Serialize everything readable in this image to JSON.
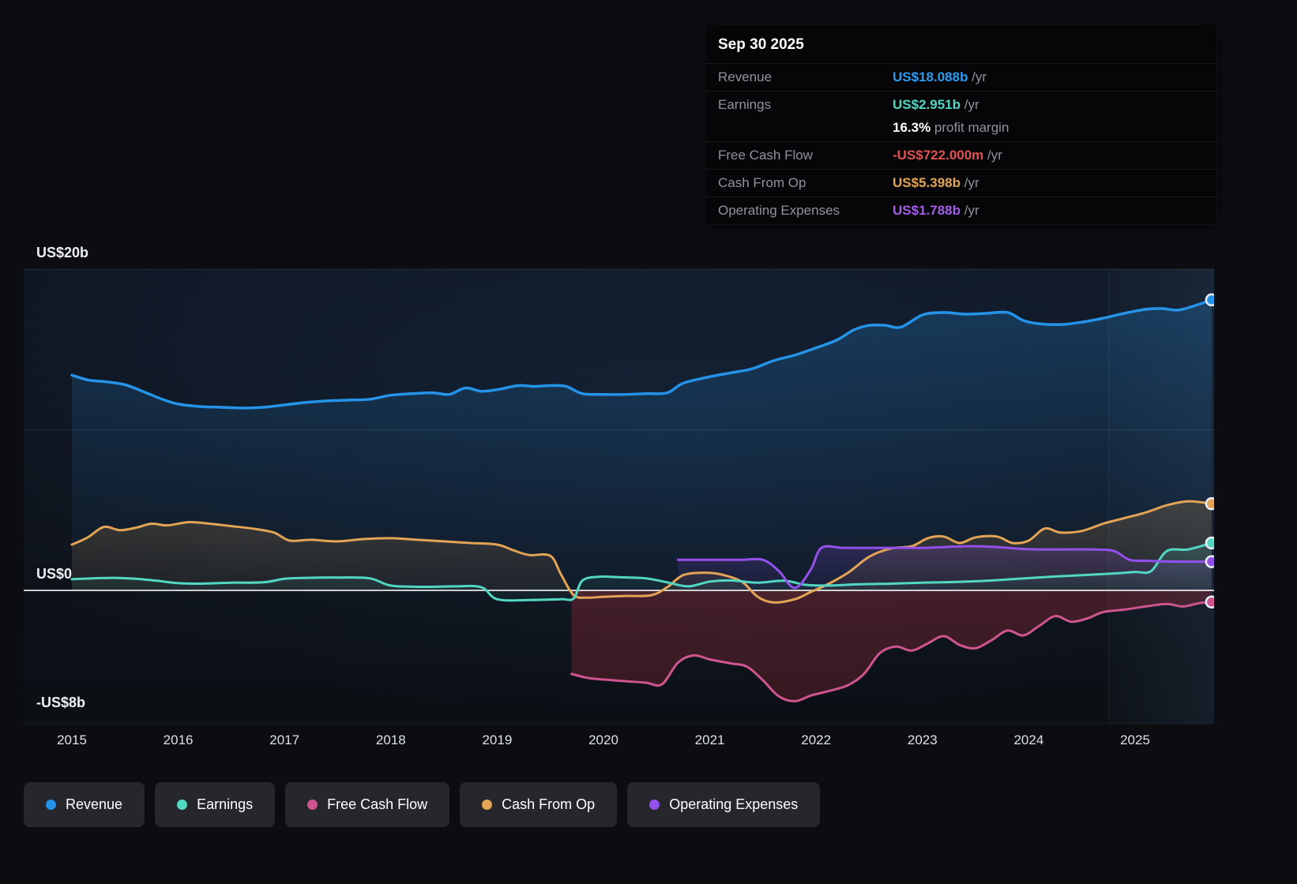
{
  "tooltip": {
    "date": "Sep 30 2025",
    "rows": [
      {
        "label": "Revenue",
        "value": "US$18.088b",
        "suffix": " /yr",
        "color": "#2e9bf0",
        "continuation": false
      },
      {
        "label": "Earnings",
        "value": "US$2.951b",
        "suffix": " /yr",
        "color": "#52d7c3",
        "continuation": false
      },
      {
        "label": "",
        "value": "16.3%",
        "suffix": " profit margin",
        "color": "#ffffff",
        "continuation": true
      },
      {
        "label": "Free Cash Flow",
        "value": "-US$722.000m",
        "suffix": " /yr",
        "color": "#e05252",
        "continuation": false
      },
      {
        "label": "Cash From Op",
        "value": "US$5.398b",
        "suffix": " /yr",
        "color": "#e3a455",
        "continuation": false
      },
      {
        "label": "Operating Expenses",
        "value": "US$1.788b",
        "suffix": " /yr",
        "color": "#a35ce8",
        "continuation": false
      }
    ]
  },
  "legend": [
    {
      "label": "Revenue",
      "color": "#2493e8"
    },
    {
      "label": "Earnings",
      "color": "#52d7c3"
    },
    {
      "label": "Free Cash Flow",
      "color": "#cf5590"
    },
    {
      "label": "Cash From Op",
      "color": "#e3a455"
    },
    {
      "label": "Operating Expenses",
      "color": "#9450eb"
    }
  ],
  "chart_data": {
    "type": "line",
    "title": "",
    "xlabel": "",
    "ylabel": "",
    "unit": "US$ billions per year",
    "x_range": [
      2015,
      2025.75
    ],
    "y_range": [
      -8,
      20
    ],
    "x_ticks": [
      2015,
      2016,
      2017,
      2018,
      2019,
      2020,
      2021,
      2022,
      2023,
      2024,
      2025
    ],
    "y_gridlines": [
      {
        "value": 20,
        "label": "US$20b",
        "line": true
      },
      {
        "value": 10,
        "label": "",
        "line": true
      },
      {
        "value": 0,
        "label": "US$0",
        "line": true
      },
      {
        "value": -8,
        "label": "-US$8b",
        "line": false
      }
    ],
    "highlight_band_start": 2024.75,
    "series": [
      {
        "name": "Revenue",
        "color": "#2493e8",
        "stroke_width": 3.5,
        "fill_top": "rgba(36,130,200,0.30)",
        "fill_bottom": "rgba(25,60,100,0.10)",
        "points": [
          [
            2015,
            13.4
          ],
          [
            2015.15,
            13.1
          ],
          [
            2015.3,
            13.0
          ],
          [
            2015.5,
            12.8
          ],
          [
            2015.7,
            12.3
          ],
          [
            2015.85,
            11.9
          ],
          [
            2016,
            11.6
          ],
          [
            2016.2,
            11.45
          ],
          [
            2016.4,
            11.4
          ],
          [
            2016.6,
            11.35
          ],
          [
            2016.8,
            11.4
          ],
          [
            2017,
            11.55
          ],
          [
            2017.2,
            11.7
          ],
          [
            2017.4,
            11.8
          ],
          [
            2017.6,
            11.85
          ],
          [
            2017.8,
            11.9
          ],
          [
            2018,
            12.15
          ],
          [
            2018.2,
            12.25
          ],
          [
            2018.4,
            12.3
          ],
          [
            2018.55,
            12.2
          ],
          [
            2018.7,
            12.6
          ],
          [
            2018.85,
            12.4
          ],
          [
            2019,
            12.5
          ],
          [
            2019.2,
            12.75
          ],
          [
            2019.35,
            12.7
          ],
          [
            2019.5,
            12.75
          ],
          [
            2019.65,
            12.7
          ],
          [
            2019.8,
            12.25
          ],
          [
            2020,
            12.2
          ],
          [
            2020.2,
            12.2
          ],
          [
            2020.4,
            12.25
          ],
          [
            2020.6,
            12.3
          ],
          [
            2020.75,
            12.9
          ],
          [
            2021,
            13.3
          ],
          [
            2021.2,
            13.55
          ],
          [
            2021.4,
            13.8
          ],
          [
            2021.6,
            14.3
          ],
          [
            2021.8,
            14.65
          ],
          [
            2022,
            15.1
          ],
          [
            2022.2,
            15.6
          ],
          [
            2022.35,
            16.2
          ],
          [
            2022.5,
            16.5
          ],
          [
            2022.65,
            16.5
          ],
          [
            2022.8,
            16.4
          ],
          [
            2023,
            17.15
          ],
          [
            2023.2,
            17.3
          ],
          [
            2023.4,
            17.2
          ],
          [
            2023.6,
            17.25
          ],
          [
            2023.8,
            17.3
          ],
          [
            2023.95,
            16.8
          ],
          [
            2024.1,
            16.6
          ],
          [
            2024.3,
            16.55
          ],
          [
            2024.5,
            16.7
          ],
          [
            2024.7,
            16.95
          ],
          [
            2024.9,
            17.25
          ],
          [
            2025.1,
            17.5
          ],
          [
            2025.25,
            17.55
          ],
          [
            2025.4,
            17.45
          ],
          [
            2025.55,
            17.7
          ],
          [
            2025.72,
            18.088
          ]
        ]
      },
      {
        "name": "Cash From Op",
        "color": "#e3a455",
        "stroke_width": 3,
        "fill_top": "rgba(227,164,85,0.20)",
        "fill_bottom": "rgba(227,164,85,0.05)",
        "points": [
          [
            2015,
            2.85
          ],
          [
            2015.15,
            3.3
          ],
          [
            2015.3,
            3.95
          ],
          [
            2015.45,
            3.75
          ],
          [
            2015.6,
            3.9
          ],
          [
            2015.75,
            4.15
          ],
          [
            2015.9,
            4.05
          ],
          [
            2016.1,
            4.25
          ],
          [
            2016.3,
            4.15
          ],
          [
            2016.5,
            4.0
          ],
          [
            2016.7,
            3.85
          ],
          [
            2016.9,
            3.6
          ],
          [
            2017.05,
            3.1
          ],
          [
            2017.25,
            3.15
          ],
          [
            2017.5,
            3.05
          ],
          [
            2017.75,
            3.2
          ],
          [
            2018,
            3.25
          ],
          [
            2018.25,
            3.15
          ],
          [
            2018.5,
            3.05
          ],
          [
            2018.75,
            2.95
          ],
          [
            2019,
            2.85
          ],
          [
            2019.15,
            2.5
          ],
          [
            2019.3,
            2.2
          ],
          [
            2019.5,
            2.15
          ],
          [
            2019.6,
            1.0
          ],
          [
            2019.72,
            -0.3
          ],
          [
            2019.85,
            -0.45
          ],
          [
            2020,
            -0.4
          ],
          [
            2020.2,
            -0.35
          ],
          [
            2020.45,
            -0.3
          ],
          [
            2020.6,
            0.2
          ],
          [
            2020.75,
            0.95
          ],
          [
            2020.95,
            1.1
          ],
          [
            2021.1,
            1.0
          ],
          [
            2021.3,
            0.55
          ],
          [
            2021.45,
            -0.4
          ],
          [
            2021.6,
            -0.75
          ],
          [
            2021.8,
            -0.55
          ],
          [
            2021.95,
            -0.1
          ],
          [
            2022.1,
            0.35
          ],
          [
            2022.3,
            1.1
          ],
          [
            2022.5,
            2.1
          ],
          [
            2022.7,
            2.6
          ],
          [
            2022.9,
            2.75
          ],
          [
            2023.05,
            3.25
          ],
          [
            2023.2,
            3.35
          ],
          [
            2023.35,
            2.95
          ],
          [
            2023.5,
            3.3
          ],
          [
            2023.7,
            3.35
          ],
          [
            2023.85,
            2.95
          ],
          [
            2024,
            3.1
          ],
          [
            2024.15,
            3.85
          ],
          [
            2024.3,
            3.6
          ],
          [
            2024.5,
            3.7
          ],
          [
            2024.7,
            4.15
          ],
          [
            2024.9,
            4.5
          ],
          [
            2025.1,
            4.85
          ],
          [
            2025.3,
            5.3
          ],
          [
            2025.5,
            5.55
          ],
          [
            2025.72,
            5.398
          ]
        ]
      },
      {
        "name": "Earnings",
        "color": "#52d7c3",
        "stroke_width": 3,
        "fill_top": "rgba(82,215,195,0.16)",
        "fill_bottom": "rgba(82,215,195,0.04)",
        "points": [
          [
            2015,
            0.7
          ],
          [
            2015.2,
            0.75
          ],
          [
            2015.4,
            0.78
          ],
          [
            2015.6,
            0.72
          ],
          [
            2015.8,
            0.6
          ],
          [
            2016,
            0.45
          ],
          [
            2016.2,
            0.42
          ],
          [
            2016.5,
            0.48
          ],
          [
            2016.8,
            0.5
          ],
          [
            2017,
            0.72
          ],
          [
            2017.2,
            0.78
          ],
          [
            2017.5,
            0.8
          ],
          [
            2017.8,
            0.75
          ],
          [
            2018,
            0.3
          ],
          [
            2018.3,
            0.22
          ],
          [
            2018.6,
            0.25
          ],
          [
            2018.85,
            0.2
          ],
          [
            2019,
            -0.55
          ],
          [
            2019.3,
            -0.6
          ],
          [
            2019.6,
            -0.55
          ],
          [
            2019.72,
            -0.5
          ],
          [
            2019.8,
            0.6
          ],
          [
            2019.95,
            0.85
          ],
          [
            2020.15,
            0.82
          ],
          [
            2020.4,
            0.75
          ],
          [
            2020.6,
            0.5
          ],
          [
            2020.8,
            0.25
          ],
          [
            2021,
            0.55
          ],
          [
            2021.2,
            0.62
          ],
          [
            2021.45,
            0.48
          ],
          [
            2021.7,
            0.6
          ],
          [
            2021.9,
            0.35
          ],
          [
            2022.1,
            0.3
          ],
          [
            2022.4,
            0.38
          ],
          [
            2022.7,
            0.42
          ],
          [
            2023,
            0.48
          ],
          [
            2023.3,
            0.52
          ],
          [
            2023.6,
            0.6
          ],
          [
            2023.9,
            0.72
          ],
          [
            2024.2,
            0.85
          ],
          [
            2024.5,
            0.95
          ],
          [
            2024.8,
            1.05
          ],
          [
            2025,
            1.15
          ],
          [
            2025.15,
            1.2
          ],
          [
            2025.3,
            2.45
          ],
          [
            2025.5,
            2.55
          ],
          [
            2025.72,
            2.951
          ]
        ]
      },
      {
        "name": "Operating Expenses",
        "color": "#9450eb",
        "stroke_width": 3,
        "fill_top": "rgba(148,80,235,0.20)",
        "fill_bottom": "rgba(148,80,235,0.05)",
        "points": [
          [
            2020.7,
            1.9
          ],
          [
            2020.9,
            1.9
          ],
          [
            2021.1,
            1.9
          ],
          [
            2021.3,
            1.9
          ],
          [
            2021.5,
            1.9
          ],
          [
            2021.65,
            1.2
          ],
          [
            2021.8,
            0.15
          ],
          [
            2021.95,
            1.3
          ],
          [
            2022.05,
            2.65
          ],
          [
            2022.25,
            2.65
          ],
          [
            2022.5,
            2.65
          ],
          [
            2022.75,
            2.65
          ],
          [
            2023,
            2.65
          ],
          [
            2023.2,
            2.7
          ],
          [
            2023.45,
            2.75
          ],
          [
            2023.7,
            2.7
          ],
          [
            2023.9,
            2.6
          ],
          [
            2024.1,
            2.55
          ],
          [
            2024.35,
            2.55
          ],
          [
            2024.6,
            2.55
          ],
          [
            2024.8,
            2.45
          ],
          [
            2024.95,
            1.9
          ],
          [
            2025.1,
            1.85
          ],
          [
            2025.3,
            1.8
          ],
          [
            2025.5,
            1.79
          ],
          [
            2025.72,
            1.788
          ]
        ]
      },
      {
        "name": "Free Cash Flow",
        "color": "#cf5590",
        "stroke_width": 3,
        "fill_top": "rgba(150,42,55,0.38)",
        "fill_bottom": "rgba(150,42,55,0.30)",
        "points": [
          [
            2019.7,
            -5.2
          ],
          [
            2019.85,
            -5.45
          ],
          [
            2020,
            -5.55
          ],
          [
            2020.2,
            -5.65
          ],
          [
            2020.4,
            -5.75
          ],
          [
            2020.55,
            -5.85
          ],
          [
            2020.7,
            -4.5
          ],
          [
            2020.85,
            -4.05
          ],
          [
            2021,
            -4.3
          ],
          [
            2021.2,
            -4.55
          ],
          [
            2021.35,
            -4.75
          ],
          [
            2021.5,
            -5.6
          ],
          [
            2021.65,
            -6.6
          ],
          [
            2021.8,
            -6.9
          ],
          [
            2021.95,
            -6.55
          ],
          [
            2022.1,
            -6.3
          ],
          [
            2022.3,
            -5.9
          ],
          [
            2022.45,
            -5.2
          ],
          [
            2022.6,
            -3.9
          ],
          [
            2022.75,
            -3.5
          ],
          [
            2022.9,
            -3.75
          ],
          [
            2023.05,
            -3.3
          ],
          [
            2023.2,
            -2.85
          ],
          [
            2023.35,
            -3.4
          ],
          [
            2023.5,
            -3.6
          ],
          [
            2023.65,
            -3.1
          ],
          [
            2023.8,
            -2.5
          ],
          [
            2023.95,
            -2.8
          ],
          [
            2024.1,
            -2.2
          ],
          [
            2024.25,
            -1.6
          ],
          [
            2024.4,
            -1.95
          ],
          [
            2024.55,
            -1.75
          ],
          [
            2024.7,
            -1.35
          ],
          [
            2024.9,
            -1.2
          ],
          [
            2025.1,
            -1.0
          ],
          [
            2025.3,
            -0.85
          ],
          [
            2025.45,
            -1.0
          ],
          [
            2025.6,
            -0.8
          ],
          [
            2025.72,
            -0.722
          ]
        ]
      }
    ]
  }
}
